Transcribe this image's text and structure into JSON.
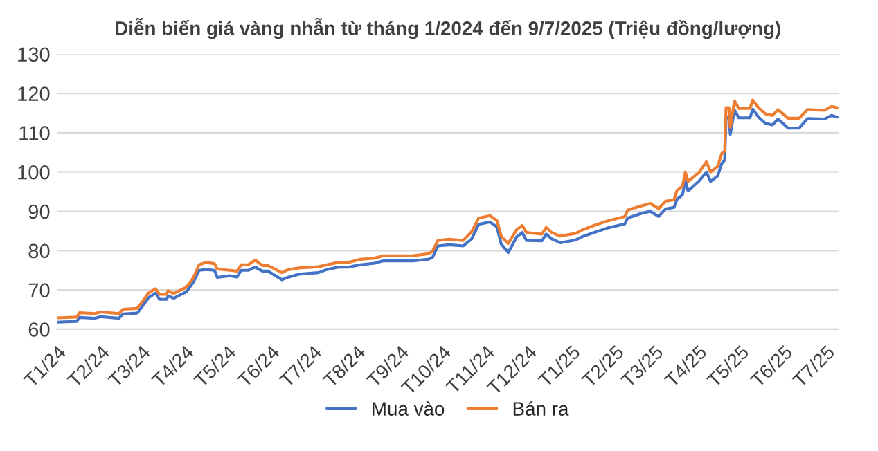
{
  "chart_data": {
    "type": "line",
    "title": "Diễn biến giá vàng nhẫn từ tháng 1/2024 đến 9/7/2025 (Triệu đồng/lượng)",
    "x": [
      "2024-01-01",
      "2024-01-15",
      "2024-01-17",
      "2024-01-28",
      "2024-02-01",
      "2024-02-14",
      "2024-02-17",
      "2024-02-27",
      "2024-03-01",
      "2024-03-06",
      "2024-03-11",
      "2024-03-14",
      "2024-03-19",
      "2024-03-20",
      "2024-03-24",
      "2024-04-02",
      "2024-04-07",
      "2024-04-11",
      "2024-04-16",
      "2024-04-22",
      "2024-04-24",
      "2024-05-03",
      "2024-05-08",
      "2024-05-11",
      "2024-05-16",
      "2024-05-21",
      "2024-05-26",
      "2024-05-30",
      "2024-06-09",
      "2024-06-13",
      "2024-06-21",
      "2024-07-05",
      "2024-07-11",
      "2024-07-19",
      "2024-07-26",
      "2024-08-04",
      "2024-08-14",
      "2024-08-20",
      "2024-09-10",
      "2024-09-21",
      "2024-09-24",
      "2024-09-28",
      "2024-10-06",
      "2024-10-16",
      "2024-10-22",
      "2024-10-27",
      "2024-11-04",
      "2024-11-09",
      "2024-11-12",
      "2024-11-17",
      "2024-11-23",
      "2024-11-27",
      "2024-11-30",
      "2024-12-11",
      "2024-12-14",
      "2024-12-18",
      "2024-12-24",
      "2025-01-04",
      "2025-01-09",
      "2025-01-17",
      "2025-01-27",
      "2025-02-08",
      "2025-02-10",
      "2025-02-15",
      "2025-02-20",
      "2025-02-26",
      "2025-03-04",
      "2025-03-09",
      "2025-03-15",
      "2025-03-17",
      "2025-03-21",
      "2025-03-23",
      "2025-03-25",
      "2025-04-02",
      "2025-04-07",
      "2025-04-10",
      "2025-04-15",
      "2025-04-18",
      "2025-04-20",
      "2025-04-21",
      "2025-04-23",
      "2025-04-24",
      "2025-04-27",
      "2025-04-30",
      "2025-05-08",
      "2025-05-10",
      "2025-05-14",
      "2025-05-19",
      "2025-05-24",
      "2025-05-28",
      "2025-06-04",
      "2025-06-12",
      "2025-06-18",
      "2025-06-30",
      "2025-07-05",
      "2025-07-09"
    ],
    "series": [
      {
        "name": "Mua vào",
        "color": "#4472c4",
        "values": [
          61.8,
          62.0,
          63.0,
          62.8,
          63.2,
          62.8,
          63.9,
          64.1,
          65.5,
          68.0,
          69.2,
          67.6,
          67.6,
          68.5,
          67.9,
          69.5,
          72.0,
          75.0,
          75.2,
          75.0,
          73.2,
          73.6,
          73.3,
          75.0,
          75.0,
          75.8,
          74.8,
          74.8,
          72.6,
          73.2,
          74.0,
          74.4,
          75.2,
          75.8,
          75.8,
          76.4,
          76.8,
          77.4,
          77.4,
          77.8,
          78.2,
          81.2,
          81.5,
          81.2,
          83.0,
          86.7,
          87.3,
          86.0,
          81.7,
          79.5,
          83.5,
          84.6,
          82.6,
          82.5,
          84.2,
          83.0,
          82.0,
          82.7,
          83.6,
          84.6,
          85.8,
          86.8,
          88.3,
          88.9,
          89.5,
          90.0,
          88.7,
          90.6,
          91.0,
          93.0,
          94.2,
          97.8,
          95.2,
          97.8,
          100.0,
          97.6,
          99.0,
          102.2,
          103.0,
          114.0,
          114.0,
          109.6,
          115.8,
          113.8,
          113.8,
          116.0,
          114.0,
          112.4,
          112.0,
          113.5,
          111.2,
          111.2,
          113.6,
          113.5,
          114.4,
          114.0
        ]
      },
      {
        "name": "Bán ra",
        "color": "#ed7d31",
        "values": [
          62.9,
          63.1,
          64.2,
          64.0,
          64.4,
          64.0,
          65.1,
          65.3,
          66.7,
          69.2,
          70.3,
          68.9,
          68.9,
          69.8,
          69.1,
          70.7,
          73.1,
          76.4,
          77.0,
          76.7,
          75.3,
          75.0,
          74.8,
          76.4,
          76.4,
          77.6,
          76.2,
          76.2,
          74.4,
          75.1,
          75.6,
          75.9,
          76.4,
          77.0,
          77.0,
          77.8,
          78.1,
          78.7,
          78.7,
          79.2,
          79.8,
          82.6,
          82.9,
          82.6,
          84.8,
          88.3,
          88.9,
          87.6,
          83.7,
          81.8,
          85.3,
          86.4,
          84.6,
          84.2,
          85.9,
          84.6,
          83.7,
          84.4,
          85.3,
          86.4,
          87.6,
          88.7,
          90.3,
          90.9,
          91.4,
          92.0,
          90.7,
          92.6,
          92.9,
          95.3,
          96.4,
          100.0,
          97.6,
          100.0,
          102.6,
          100.0,
          101.4,
          104.8,
          105.3,
          116.4,
          116.4,
          111.4,
          118.1,
          116.2,
          116.2,
          118.3,
          116.4,
          114.8,
          114.4,
          115.9,
          113.7,
          113.7,
          115.9,
          115.7,
          116.7,
          116.4
        ]
      }
    ],
    "xlim": [
      "2024-01-01",
      "2025-07-10"
    ],
    "xticks": [
      {
        "value": "2024-01",
        "label": "T1/24"
      },
      {
        "value": "2024-02",
        "label": "T2/24"
      },
      {
        "value": "2024-03",
        "label": "T3/24"
      },
      {
        "value": "2024-04",
        "label": "T4/24"
      },
      {
        "value": "2024-05",
        "label": "T5/24"
      },
      {
        "value": "2024-06",
        "label": "T6/24"
      },
      {
        "value": "2024-07",
        "label": "T7/24"
      },
      {
        "value": "2024-08",
        "label": "T8/24"
      },
      {
        "value": "2024-09",
        "label": "T9/24"
      },
      {
        "value": "2024-10",
        "label": "T10/24"
      },
      {
        "value": "2024-11",
        "label": "T11/24"
      },
      {
        "value": "2024-12",
        "label": "T12/24"
      },
      {
        "value": "2025-01",
        "label": "T1/25"
      },
      {
        "value": "2025-02",
        "label": "T2/25"
      },
      {
        "value": "2025-03",
        "label": "T3/25"
      },
      {
        "value": "2025-04",
        "label": "T4/25"
      },
      {
        "value": "2025-05",
        "label": "T5/25"
      },
      {
        "value": "2025-06",
        "label": "T6/25"
      },
      {
        "value": "2025-07",
        "label": "T7/25"
      }
    ],
    "ylim": [
      60,
      130
    ],
    "yticks": [
      60,
      70,
      80,
      90,
      100,
      110,
      120,
      130
    ],
    "grid": "y",
    "legend": "bottom",
    "marker": "none",
    "line_style": "solid"
  }
}
